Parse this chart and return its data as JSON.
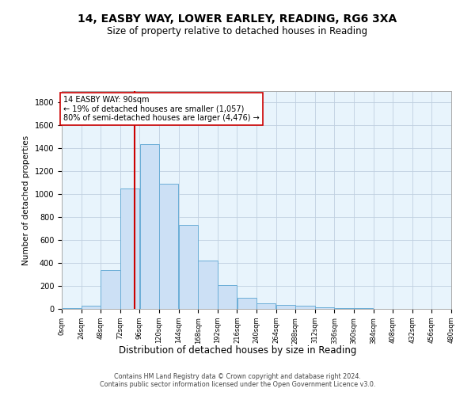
{
  "title_line1": "14, EASBY WAY, LOWER EARLEY, READING, RG6 3XA",
  "title_line2": "Size of property relative to detached houses in Reading",
  "xlabel": "Distribution of detached houses by size in Reading",
  "ylabel": "Number of detached properties",
  "bar_color": "#cce0f5",
  "bar_edge_color": "#6baed6",
  "vline_x": 90,
  "vline_color": "#cc0000",
  "annotation_title": "14 EASBY WAY: 90sqm",
  "annotation_line2": "← 19% of detached houses are smaller (1,057)",
  "annotation_line3": "80% of semi-detached houses are larger (4,476) →",
  "bin_edges": [
    0,
    24,
    48,
    72,
    96,
    120,
    144,
    168,
    192,
    216,
    240,
    264,
    288,
    312,
    336,
    360,
    384,
    408,
    432,
    456,
    480
  ],
  "bar_heights": [
    5,
    30,
    340,
    1050,
    1440,
    1090,
    730,
    420,
    210,
    100,
    50,
    35,
    25,
    15,
    10,
    5,
    2,
    0,
    0,
    0
  ],
  "ylim": [
    0,
    1900
  ],
  "yticks": [
    0,
    200,
    400,
    600,
    800,
    1000,
    1200,
    1400,
    1600,
    1800
  ],
  "background_color": "#ffffff",
  "plot_bg_color": "#e8f4fc",
  "grid_color": "#c0d0e0",
  "footer_line1": "Contains HM Land Registry data © Crown copyright and database right 2024.",
  "footer_line2": "Contains public sector information licensed under the Open Government Licence v3.0."
}
